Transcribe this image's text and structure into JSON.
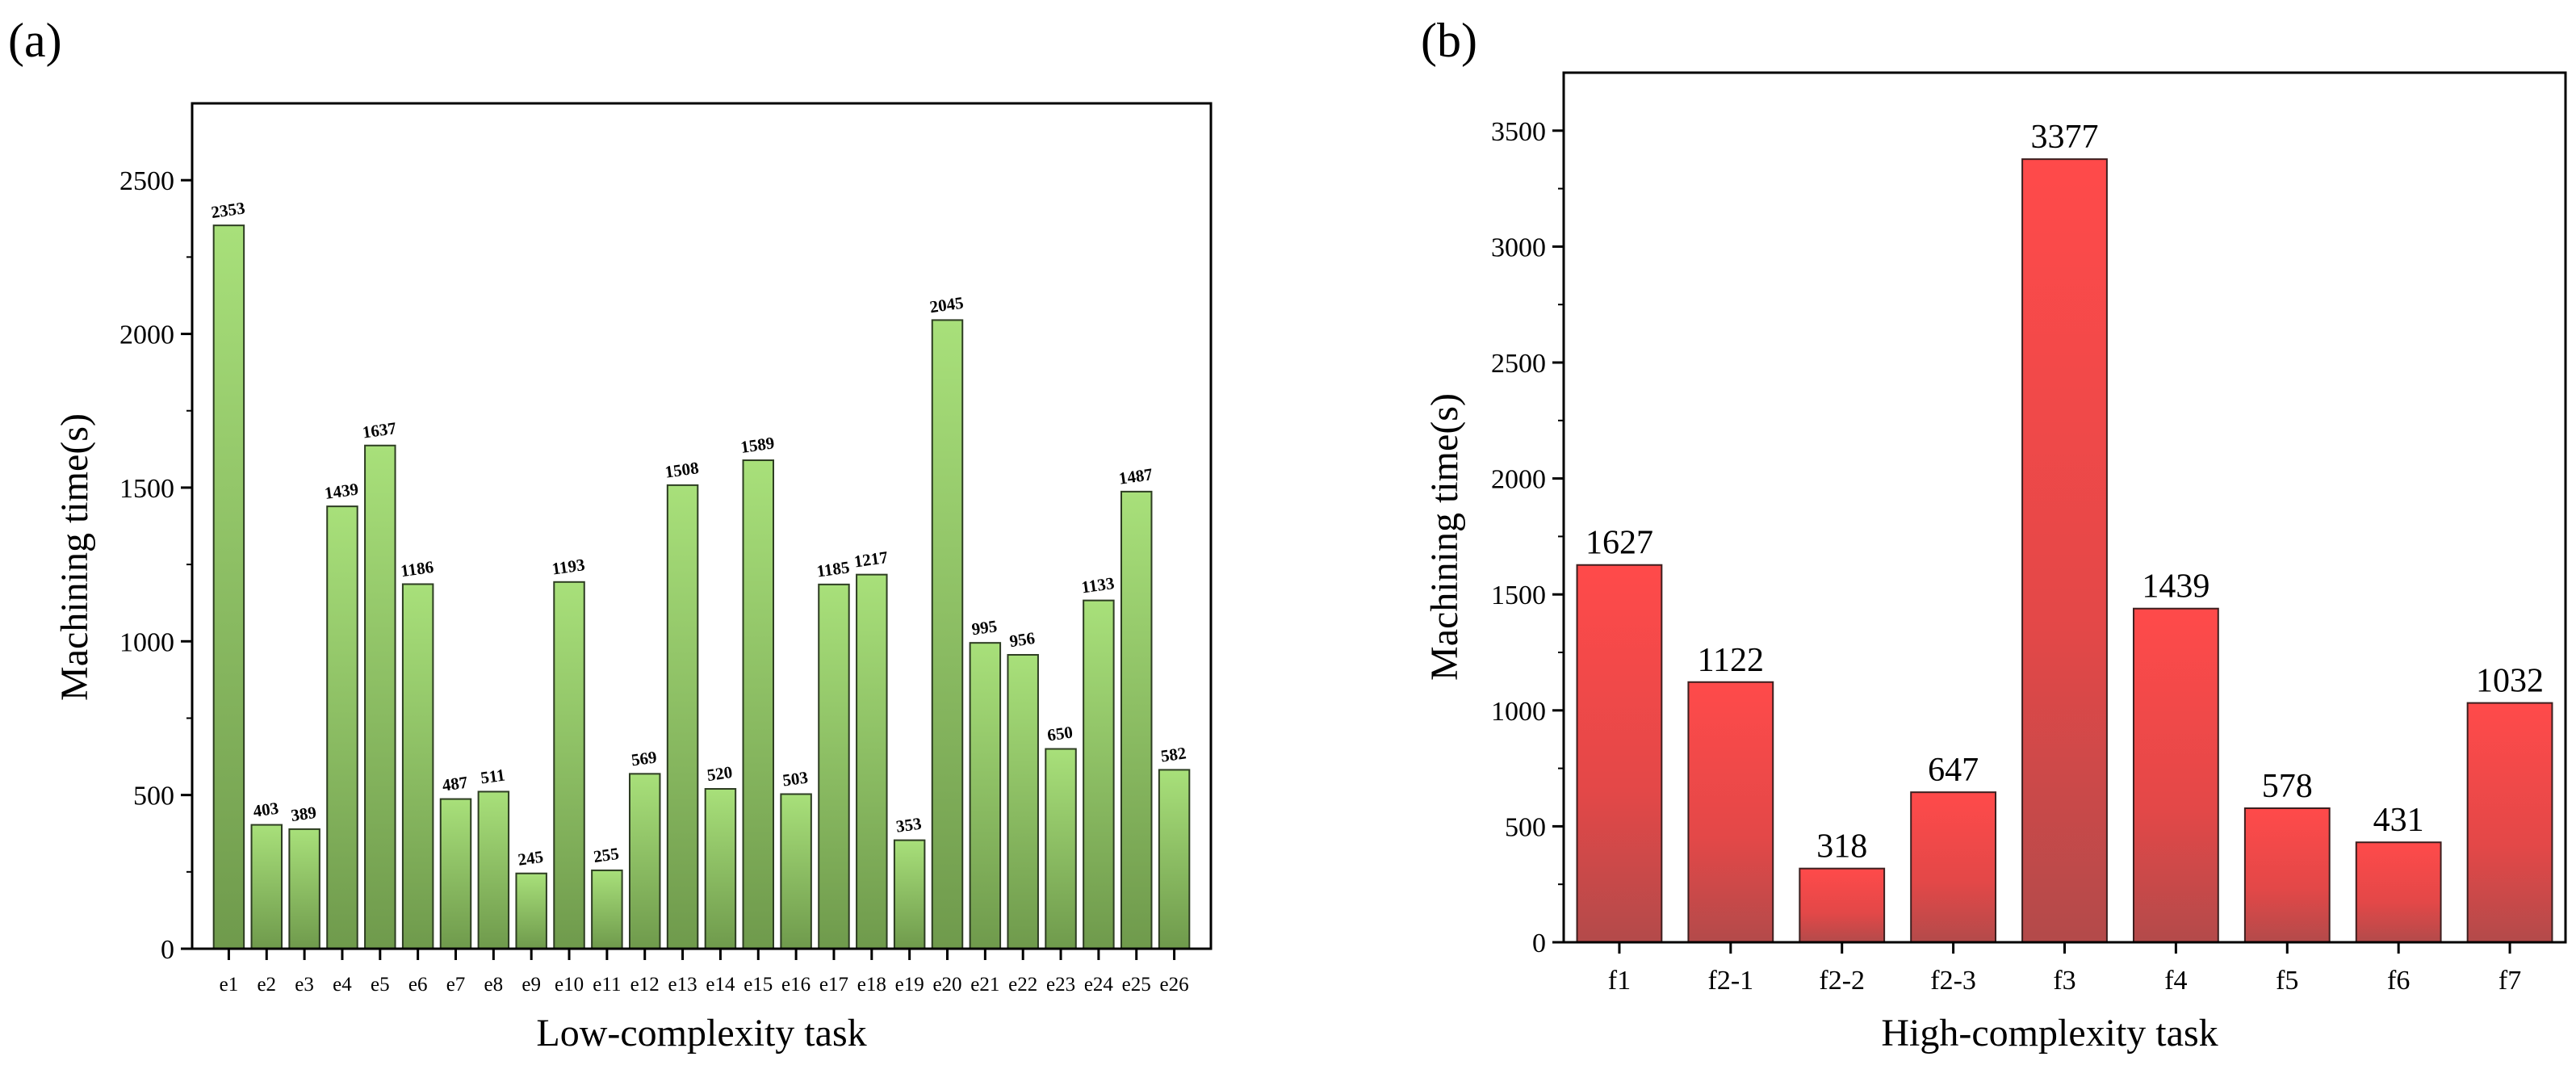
{
  "chart_data": [
    {
      "type": "bar",
      "panel_label": "(a)",
      "xlabel": "Low-complexity task",
      "ylabel": "Machining time(s)",
      "ylim": [
        0,
        2750
      ],
      "yticks": [
        0,
        500,
        1000,
        1500,
        2000,
        2500
      ],
      "categories": [
        "e1",
        "e2",
        "e3",
        "e4",
        "e5",
        "e6",
        "e7",
        "e8",
        "e9",
        "e10",
        "e11",
        "e12",
        "e13",
        "e14",
        "e15",
        "e16",
        "e17",
        "e18",
        "e19",
        "e20",
        "e21",
        "e22",
        "e23",
        "e24",
        "e25",
        "e26"
      ],
      "values": [
        2353,
        403,
        389,
        1439,
        1637,
        1186,
        487,
        511,
        245,
        1193,
        255,
        569,
        1508,
        520,
        1589,
        503,
        1185,
        1217,
        353,
        2045,
        995,
        956,
        650,
        1133,
        1487,
        582
      ],
      "colors": {
        "bar_top": "#a8e07a",
        "bar_bottom": "#6f9a4c",
        "edge": "#2d3d22"
      },
      "grid": false
    },
    {
      "type": "bar",
      "panel_label": "(b)",
      "xlabel": "High-complexity task",
      "ylabel": "Machining time(s)",
      "ylim": [
        0,
        3750
      ],
      "yticks": [
        0,
        500,
        1000,
        1500,
        2000,
        2500,
        3000,
        3500
      ],
      "categories": [
        "f1",
        "f2-1",
        "f2-2",
        "f2-3",
        "f3",
        "f4",
        "f5",
        "f6",
        "f7"
      ],
      "values": [
        1627,
        1122,
        318,
        647,
        3377,
        1439,
        578,
        431,
        1032
      ],
      "colors": {
        "bar_top": "#ff4a4a",
        "bar_bottom": "#b34a4a",
        "edge": "#3d1f1f"
      },
      "grid": false
    }
  ]
}
